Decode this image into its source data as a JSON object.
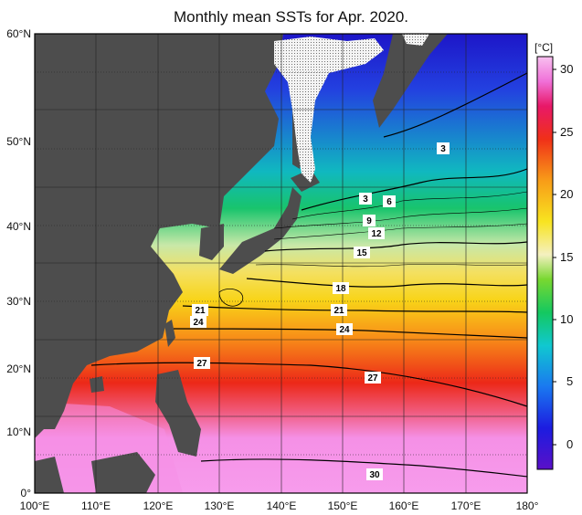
{
  "title": "Monthly mean SSTs for Apr. 2020.",
  "map": {
    "lat_labels": [
      "60°N",
      "50°N",
      "40°N",
      "30°N",
      "20°N",
      "10°N",
      "0°"
    ],
    "lon_labels": [
      "100°E",
      "110°E",
      "120°E",
      "130°E",
      "140°E",
      "150°E",
      "160°E",
      "170°E",
      "180°"
    ],
    "contour_labels": [
      "3",
      "3",
      "6",
      "9",
      "12",
      "15",
      "18",
      "21",
      "21",
      "24",
      "24",
      "27",
      "27",
      "30"
    ]
  },
  "colorbar": {
    "unit": "[°C]",
    "ticks": [
      "30",
      "25",
      "20",
      "15",
      "10",
      "5",
      "0"
    ]
  },
  "colors": {
    "land": "#4d4d4d",
    "ice": "#f2f2f2",
    "cold": "#2a2ad8",
    "warm": "#e81818",
    "hot": "#f58ce6"
  }
}
